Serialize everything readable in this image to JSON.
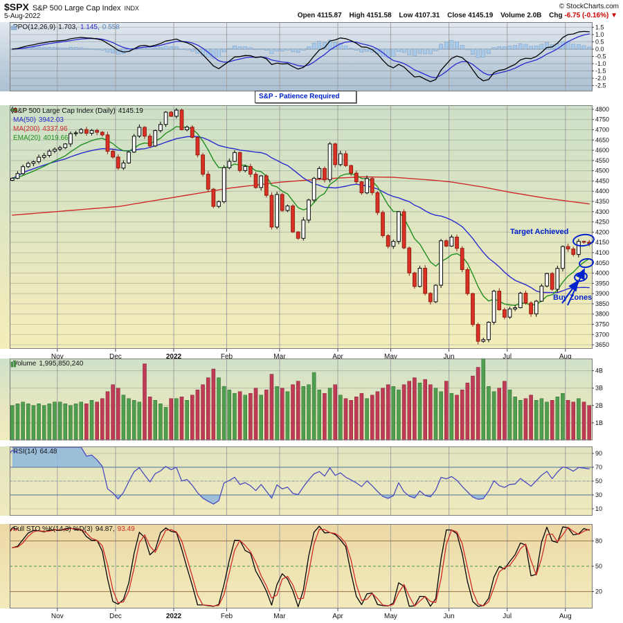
{
  "header": {
    "symbol": "$SPX",
    "name": "S&P 500 Large Cap Index",
    "exchange": "INDX",
    "date": "5-Aug-2022",
    "copyright": "© StockCharts.com",
    "quote": {
      "open_label": "Open",
      "open_value": "4115.87",
      "high_label": "High",
      "high_value": "4151.58",
      "low_label": "Low",
      "low_value": "4107.31",
      "close_label": "Close",
      "close_value": "4145.19",
      "volume_label": "Volume",
      "volume_value": "2.0B",
      "chg_label": "Chg",
      "chg_value": "-6.75 (-0.16%)",
      "chg_arrow": "▼"
    }
  },
  "legends": {
    "ppo": {
      "name": "PPO(12,26,9)",
      "v1": "1.703,",
      "v2": "1.145,",
      "v3": "0.558"
    },
    "price": {
      "main": "S&P 500 Large Cap Index (Daily)",
      "main_value": "4145.19",
      "ma50": "MA(50)",
      "ma50_value": "3942.03",
      "ma200": "MA(200)",
      "ma200_value": "4337.96",
      "ema20": "EMA(20)",
      "ema20_value": "4019.66"
    },
    "volume": {
      "name": "Volume",
      "value": "1,995,850,240"
    },
    "rsi": {
      "name": "RSI(14)",
      "value": "64.48"
    },
    "sto": {
      "name": "Full STO %K(14,3) %D(3)",
      "k": "94.87,",
      "d": "93.49"
    }
  },
  "annotations": {
    "note_box": "S&P - Patience Required",
    "target": "Target Achieved",
    "buy_zones": "Buy Zones"
  },
  "chart_data": {
    "type": "candlestick",
    "title": "S&P 500 Large Cap Index (Daily)",
    "x_month_ticks": [
      {
        "label": "Nov",
        "i": 9
      },
      {
        "label": "Dec",
        "i": 20
      },
      {
        "label": "2022",
        "i": 31,
        "bold": true
      },
      {
        "label": "Feb",
        "i": 41
      },
      {
        "label": "Mar",
        "i": 51
      },
      {
        "label": "Apr",
        "i": 62
      },
      {
        "label": "May",
        "i": 72
      },
      {
        "label": "Jun",
        "i": 83
      },
      {
        "label": "Jul",
        "i": 94
      },
      {
        "label": "Aug",
        "i": 105
      }
    ],
    "closes": [
      4463,
      4486,
      4520,
      4536,
      4544,
      4566,
      4575,
      4596,
      4605,
      4613,
      4631,
      4681,
      4685,
      4701,
      4683,
      4697,
      4688,
      4675,
      4595,
      4567,
      4513,
      4538,
      4591,
      4669,
      4712,
      4669,
      4621,
      4696,
      4726,
      4786,
      4766,
      4796,
      4700,
      4713,
      4663,
      4577,
      4483,
      4410,
      4326,
      4349,
      4515,
      4546,
      4589,
      4501,
      4521,
      4483,
      4418,
      4475,
      4380,
      4225,
      4384,
      4306,
      4328,
      4201,
      4170,
      4259,
      4357,
      4463,
      4511,
      4456,
      4631,
      4530,
      4583,
      4525,
      4488,
      4446,
      4392,
      4462,
      4393,
      4296,
      4183,
      4131,
      4155,
      4300,
      4123,
      4001,
      3935,
      4024,
      3901,
      3860,
      3941,
      4158,
      4132,
      4176,
      4121,
      4017,
      3900,
      3749,
      3667,
      3675,
      3760,
      3912,
      3821,
      3785,
      3825,
      3831,
      3902,
      3854,
      3801,
      3863,
      3937,
      3998,
      3921,
      4023,
      4130,
      4118,
      4091,
      4155,
      4151,
      4145
    ],
    "volumes_billions": [
      2.0,
      2.1,
      2.2,
      2.1,
      2.0,
      2.1,
      2.0,
      2.1,
      2.2,
      2.2,
      2.1,
      2.0,
      2.1,
      2.2,
      2.1,
      2.3,
      2.2,
      2.4,
      2.8,
      3.2,
      3.0,
      2.6,
      2.4,
      2.3,
      2.2,
      4.4,
      2.5,
      2.3,
      2.1,
      1.9,
      2.4,
      2.4,
      2.5,
      2.3,
      2.6,
      2.9,
      3.2,
      3.6,
      4.1,
      3.6,
      3.1,
      2.9,
      2.7,
      2.8,
      2.6,
      2.7,
      3.0,
      2.6,
      2.9,
      3.8,
      3.1,
      3.0,
      2.8,
      3.2,
      3.4,
      3.1,
      3.2,
      3.9,
      2.9,
      2.7,
      3.0,
      3.2,
      2.6,
      2.4,
      2.3,
      2.5,
      2.7,
      2.4,
      2.6,
      2.8,
      3.0,
      3.2,
      3.1,
      2.9,
      3.2,
      3.4,
      3.6,
      3.3,
      3.5,
      3.2,
      3.0,
      2.8,
      3.4,
      2.7,
      2.6,
      2.9,
      3.3,
      3.7,
      4.2,
      4.7,
      3.1,
      2.8,
      3.0,
      3.4,
      2.9,
      2.5,
      2.3,
      2.4,
      2.6,
      2.3,
      2.4,
      2.2,
      2.3,
      2.5,
      2.7,
      2.3,
      2.2,
      2.4,
      2.2,
      2.0
    ],
    "ma200_keyframes": [
      [
        0,
        4283
      ],
      [
        20,
        4325
      ],
      [
        31,
        4372
      ],
      [
        41,
        4415
      ],
      [
        51,
        4445
      ],
      [
        60,
        4462
      ],
      [
        66,
        4470
      ],
      [
        72,
        4468
      ],
      [
        79,
        4455
      ],
      [
        83,
        4445
      ],
      [
        89,
        4420
      ],
      [
        94,
        4395
      ],
      [
        101,
        4365
      ],
      [
        109,
        4338
      ]
    ],
    "axes": {
      "price": {
        "range": [
          3630,
          4820
        ],
        "ticks": [
          4800,
          4750,
          4700,
          4650,
          4600,
          4550,
          4500,
          4450,
          4400,
          4350,
          4300,
          4250,
          4200,
          4150,
          4100,
          4050,
          4000,
          3950,
          3900,
          3850,
          3800,
          3750,
          3700,
          3650
        ]
      },
      "ppo": {
        "range": [
          -2.9,
          1.85
        ],
        "ticks": [
          1.5,
          1.0,
          0.5,
          0.0,
          -0.5,
          -1.0,
          -1.5,
          -2.0,
          -2.5
        ]
      },
      "volume": {
        "range": [
          0,
          4.7
        ],
        "ticks": [
          4,
          3,
          2,
          1
        ],
        "tick_labels": [
          "4B",
          "3B",
          "2B",
          "1B"
        ]
      },
      "rsi": {
        "range": [
          0,
          100
        ],
        "ticks": [
          90,
          70,
          50,
          30,
          10
        ],
        "overbought": 70,
        "middle": 50,
        "oversold": 30
      },
      "sto": {
        "range": [
          0,
          100
        ],
        "ticks": [
          80,
          50,
          20
        ],
        "overbought": 80,
        "middle": 50,
        "oversold": 20
      }
    },
    "colors": {
      "up_candle": "#ffffff",
      "up_stroke": "#000000",
      "down_candle": "#dd3024",
      "down_stroke": "#8f1d12",
      "ma50": "#2a2ad0",
      "ma200": "#d02a2a",
      "ema20": "#1f8f1f",
      "volume_up": "#4f9d4f",
      "volume_down": "#bf3a55",
      "rsi": "#4a4ac0",
      "sto_k": "#000000",
      "sto_d": "#d02a2a",
      "ppo_line": "#000000",
      "ppo_signal": "#2a2ad0",
      "ppo_hist": "#a9c9e9",
      "ppo_hist_label": "#5b86b8",
      "annotation": "#0022cc",
      "negative": "#cc0000"
    }
  }
}
